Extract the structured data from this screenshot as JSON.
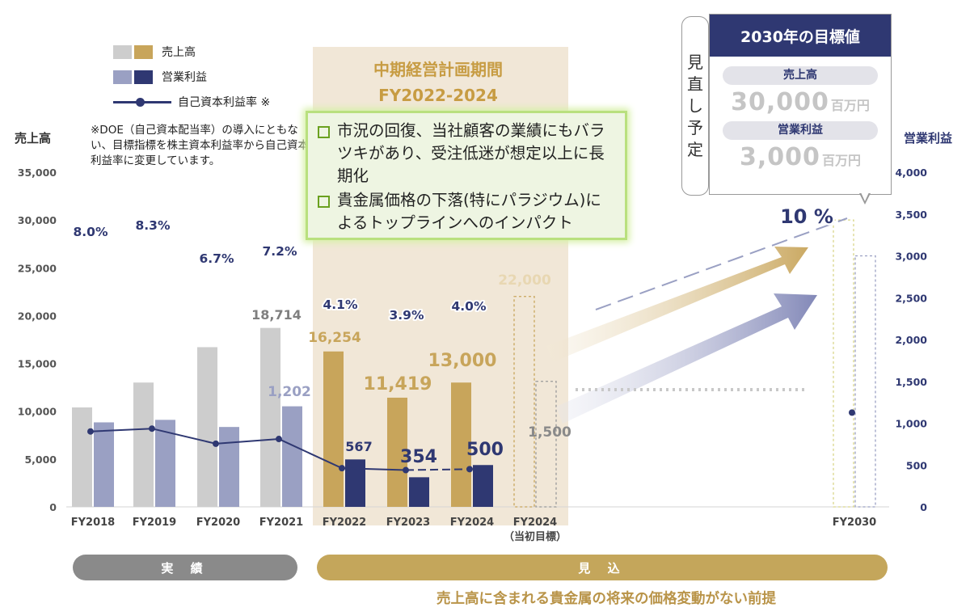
{
  "chart_data": {
    "type": "bar",
    "categories": [
      "FY2018",
      "FY2019",
      "FY2020",
      "FY2021",
      "FY2022",
      "FY2023",
      "FY2024",
      "FY2024\n（当初目標）",
      "FY2030"
    ],
    "category_lines": [
      [
        "FY2018"
      ],
      [
        "FY2019"
      ],
      [
        "FY2020"
      ],
      [
        "FY2021"
      ],
      [
        "FY2022"
      ],
      [
        "FY2023"
      ],
      [
        "FY2024"
      ],
      [
        "FY2024",
        "（当初目標）"
      ],
      [
        "FY2030"
      ]
    ],
    "y_left": {
      "label": "売上高",
      "min": 0,
      "max": 35000,
      "ticks": [
        "0",
        "5,000",
        "10,000",
        "15,000",
        "20,000",
        "25,000",
        "30,000",
        "35,000"
      ]
    },
    "y_right": {
      "label": "営業利益",
      "min": 0,
      "max": 4000,
      "ticks": [
        "0",
        "500",
        "1,000",
        "1,500",
        "2,000",
        "2,500",
        "3,000",
        "3,500",
        "4,000"
      ]
    },
    "series": [
      {
        "name": "売上高",
        "axis": "left",
        "values": [
          10400,
          13000,
          16700,
          18714,
          16254,
          11419,
          13000,
          22000,
          30000
        ],
        "labels": [
          "",
          "",
          "",
          "18,714",
          "16,254",
          "11,419",
          "13,000",
          "22,000",
          ""
        ]
      },
      {
        "name": "営業利益",
        "axis": "right",
        "values": [
          1010,
          1040,
          955,
          1202,
          567,
          354,
          500,
          1500,
          3000
        ],
        "labels": [
          "",
          "",
          "",
          "1,202",
          "567",
          "354",
          "500",
          "1,500",
          ""
        ]
      },
      {
        "name": "自己資本利益率 ※",
        "axis": "line",
        "values": [
          8.0,
          8.3,
          6.7,
          7.2,
          4.1,
          3.9,
          4.0,
          null,
          10
        ],
        "labels": [
          "8.0%",
          "8.3%",
          "6.7%",
          "7.2%",
          "4.1%",
          "3.9%",
          "4.0%",
          "",
          "10 %"
        ]
      }
    ],
    "grid": false,
    "legend_position": "top-left"
  },
  "legend": [
    {
      "name": "売上高",
      "colors": [
        "#cdcdcd",
        "#c8a55b"
      ]
    },
    {
      "name": "営業利益",
      "colors": [
        "#9aa0c3",
        "#2f3872"
      ]
    },
    {
      "name": "自己資本利益率 ※",
      "color": "#2f3872"
    }
  ],
  "note": "※DOE（自己資本配当率）の導入にともない、目標指標を株主資本利益率から自己資本利益率に変更しています。",
  "mid_term": {
    "title_line1": "中期経営計画期間",
    "title_line2": "FY2022-2024"
  },
  "bullets": [
    "市況の回復、当社顧客の業績にもバラツキがあり、受注低迷が想定以上に長期化",
    "貴金属価格の下落(特にパラジウム)によるトップラインへのインパクト"
  ],
  "review": "見直し予定",
  "target": {
    "header": "2030年の目標値",
    "sales_label": "売上高",
    "sales_value": "30,000",
    "sales_unit": "百万円",
    "profit_label": "営業利益",
    "profit_value": "3,000",
    "profit_unit": "百万円"
  },
  "periods": {
    "actual": "実 績",
    "forecast": "見 込"
  },
  "premise": "売上高に含まれる貴金属の将来の価格変動がない前提",
  "colors": {
    "navy": "#2f3872",
    "gold": "#c8a55b",
    "gray": "#cdcdcd",
    "lavender": "#9aa0c3",
    "band": "#f1e7d7"
  }
}
